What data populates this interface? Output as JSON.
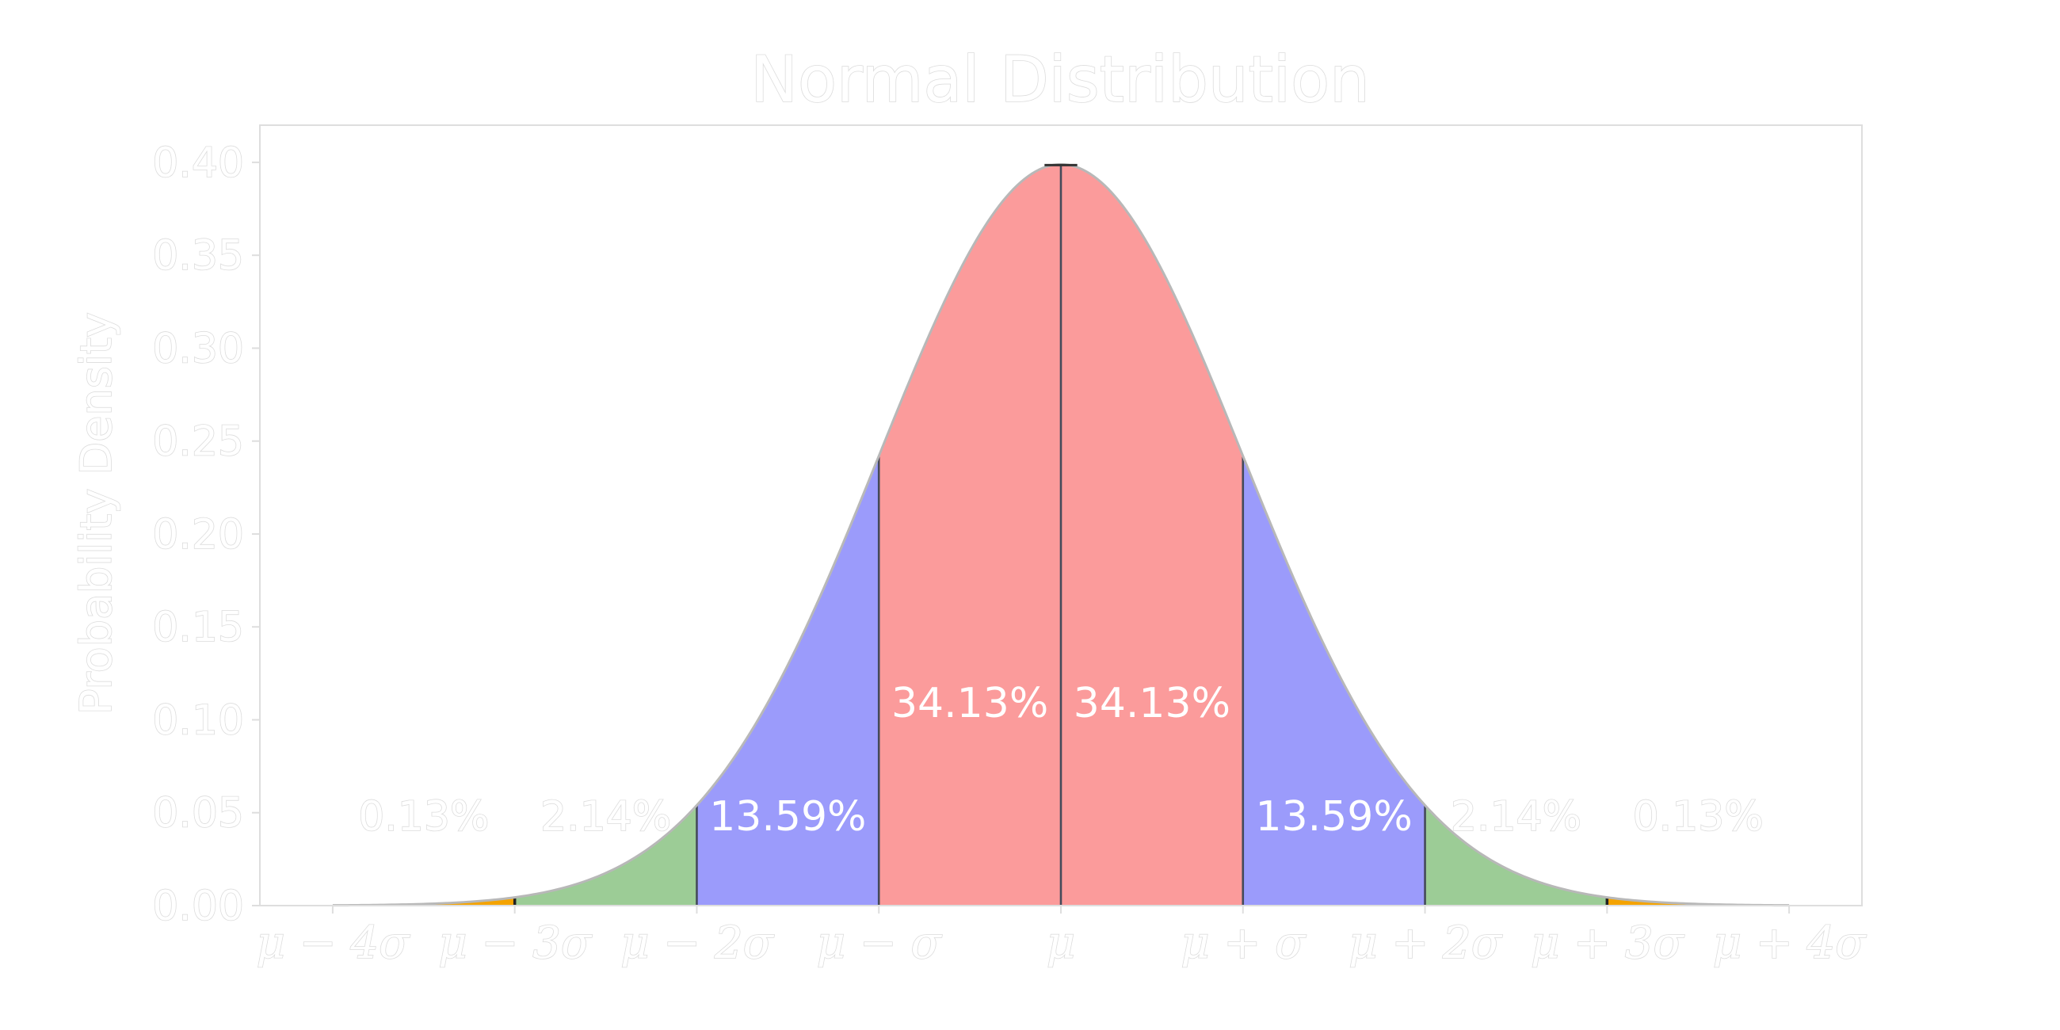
{
  "chart_data": {
    "type": "area",
    "title": "Normal Distribution",
    "xlabel": "",
    "ylabel": "Probability Density",
    "xlim": [
      -4.4,
      4.4
    ],
    "ylim": [
      0.0,
      0.42
    ],
    "grid": false,
    "y_ticks": [
      "0.00",
      "0.05",
      "0.10",
      "0.15",
      "0.20",
      "0.25",
      "0.30",
      "0.35",
      "0.40"
    ],
    "y_tick_values": [
      0.0,
      0.05,
      0.1,
      0.15,
      0.2,
      0.25,
      0.3,
      0.35,
      0.4
    ],
    "x_ticks": [
      "μ − 4σ",
      "μ − 3σ",
      "μ − 2σ",
      "μ − σ",
      "μ",
      "μ + σ",
      "μ + 2σ",
      "μ + 3σ",
      "μ + 4σ"
    ],
    "x_tick_values": [
      -4,
      -3,
      -2,
      -1,
      0,
      1,
      2,
      3,
      4
    ],
    "curve": "standard normal probability density, peak 0.399 at μ",
    "regions": [
      {
        "from": -4,
        "to": -3,
        "percent": "0.13%",
        "color": "#f4a300"
      },
      {
        "from": -3,
        "to": -2,
        "percent": "2.14%",
        "color": "#9ccc96"
      },
      {
        "from": -2,
        "to": -1,
        "percent": "13.59%",
        "color": "#9b9bfb"
      },
      {
        "from": -1,
        "to": 0,
        "percent": "34.13%",
        "color": "#fb9b9b"
      },
      {
        "from": 0,
        "to": 1,
        "percent": "34.13%",
        "color": "#fb9b9b"
      },
      {
        "from": 1,
        "to": 2,
        "percent": "13.59%",
        "color": "#9b9bfb"
      },
      {
        "from": 2,
        "to": 3,
        "percent": "2.14%",
        "color": "#9ccc96"
      },
      {
        "from": 3,
        "to": 4,
        "percent": "0.13%",
        "color": "#f4a300"
      }
    ]
  }
}
